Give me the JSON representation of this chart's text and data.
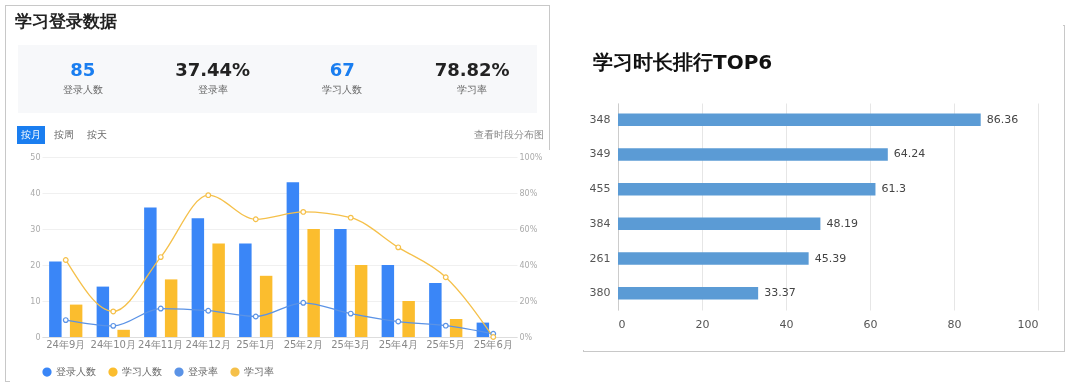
{
  "chart_data": [
    {
      "type": "other",
      "title": "学习登录数据",
      "annotations": [
        "85",
        "登录人数",
        "37.44%",
        "登录率",
        "67",
        "学习人数",
        "78.82%",
        "学习率"
      ]
    },
    {
      "type": "bar",
      "categories": [
        "24年9月",
        "24年10月",
        "24年11月",
        "24年12月",
        "25年1月",
        "25年2月",
        "25年3月",
        "25年4月",
        "25年5月",
        "25年6月"
      ],
      "series": [
        {
          "name": "登录人数",
          "type": "bar",
          "color": "#3a86f7",
          "values": [
            21,
            14,
            36,
            33,
            26,
            43,
            30,
            20,
            15,
            4
          ]
        },
        {
          "name": "学习人数",
          "type": "bar",
          "color": "#fbbd2e",
          "values": [
            9,
            2,
            16,
            26,
            17,
            30,
            20,
            10,
            5,
            0
          ]
        },
        {
          "name": "登录率",
          "type": "line",
          "axis": "y2",
          "color": "#5b93e6",
          "values": [
            9.4,
            6.2,
            15.8,
            14.6,
            11.4,
            19,
            13,
            8.6,
            6.3,
            1.8
          ]
        },
        {
          "name": "学习率",
          "type": "line",
          "axis": "y2",
          "color": "#f5c04a",
          "values": [
            42.8,
            14.2,
            44.4,
            78.8,
            65.4,
            69.5,
            66.3,
            49.8,
            33.2,
            0
          ]
        }
      ],
      "ylim": [
        0,
        50
      ],
      "yticks": [
        0,
        10,
        20,
        30,
        40,
        50
      ],
      "y2lim": [
        0,
        100
      ],
      "y2ticks": [
        {
          "value": 0,
          "label": "0%"
        },
        {
          "value": 20,
          "label": "20%"
        },
        {
          "value": 40,
          "label": "40%"
        },
        {
          "value": 60,
          "label": "60%"
        },
        {
          "value": 80,
          "label": "80%"
        },
        {
          "value": 100,
          "label": "100%"
        }
      ],
      "grid": "y",
      "legend": "bottom",
      "marker": "circle",
      "line_style": "solid",
      "annotations": [
        "按月",
        "按周",
        "按天",
        "查看时段分布图"
      ]
    },
    {
      "type": "bar",
      "orientation": "horizontal",
      "title": "学习时长排行TOP6",
      "categories": [
        "348",
        "349",
        "455",
        "384",
        "261",
        "380"
      ],
      "values": [
        86.36,
        64.24,
        61.3,
        48.19,
        45.39,
        33.37
      ],
      "color": "#5b9bd5",
      "xlim": [
        0,
        100
      ],
      "xticks": [
        0,
        20,
        40,
        60,
        80,
        100
      ],
      "grid": "x",
      "data_labels": true
    }
  ]
}
